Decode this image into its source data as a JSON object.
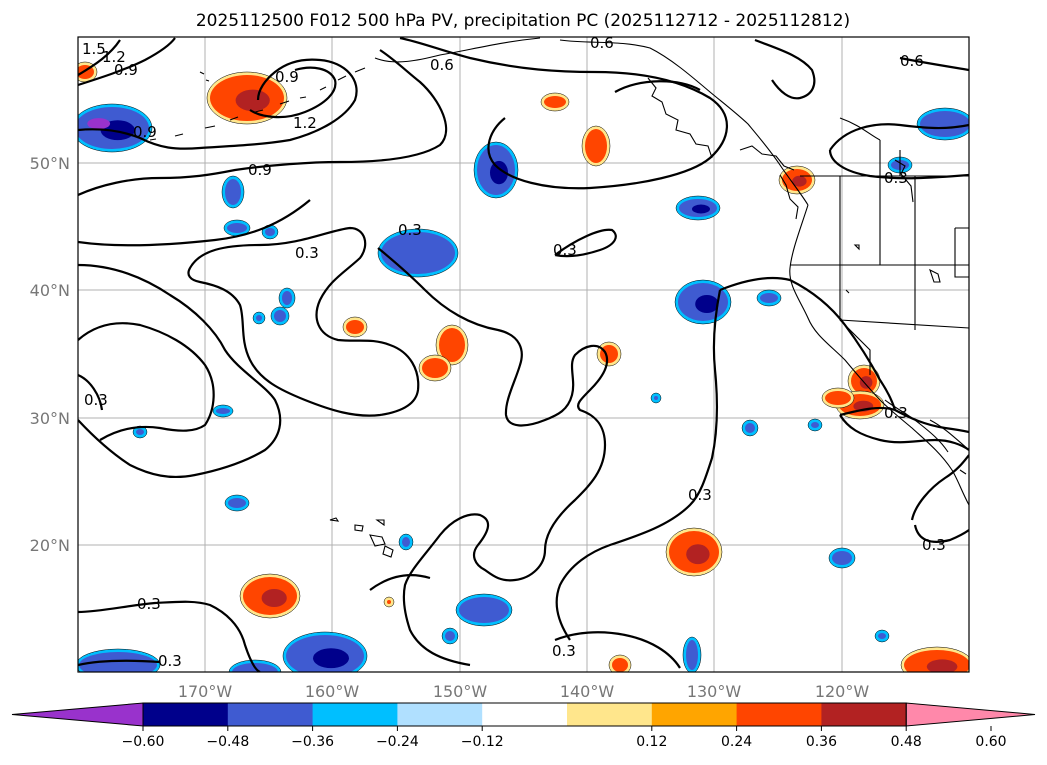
{
  "title": "2025112500 F012 500 hPa PV, precipitation PC (2025112712 - 2025112812)",
  "lat_labels": [
    "50°N",
    "40°N",
    "30°N",
    "20°N"
  ],
  "lon_labels": [
    "170°W",
    "160°W",
    "150°W",
    "140°W",
    "130°W",
    "120°W"
  ],
  "contour_labels": [
    "1.5",
    "1.2",
    "0.9",
    "0.9",
    "1.2",
    "0.9",
    "0.6",
    "0.6",
    "0.9",
    "0.6",
    "0.3",
    "0.3",
    "0.3",
    "0.3",
    "0.3",
    "0.3",
    "0.3",
    "0.3",
    "0.3",
    "0.3",
    "0.3"
  ],
  "colorbar": {
    "colors": [
      "#9932cc",
      "#00008b",
      "#3f5bd1",
      "#00bfff",
      "#b0e0ff",
      "#ffffff",
      "#ffe68c",
      "#ffa500",
      "#ff4500",
      "#b22222",
      "#ff88aa"
    ],
    "tick_labels": [
      "−0.60",
      "−0.48",
      "−0.36",
      "−0.24",
      "−0.12",
      "0.12",
      "0.24",
      "0.36",
      "0.48",
      "0.60"
    ]
  },
  "blob_colors": {
    "neg_outer": "#00bfff",
    "neg_mid": "#3f5bd1",
    "neg_core": "#00008b",
    "neg_extreme": "#9932cc",
    "pos_outer": "#ffe68c",
    "pos_mid": "#ff4500",
    "pos_core": "#b22222"
  }
}
